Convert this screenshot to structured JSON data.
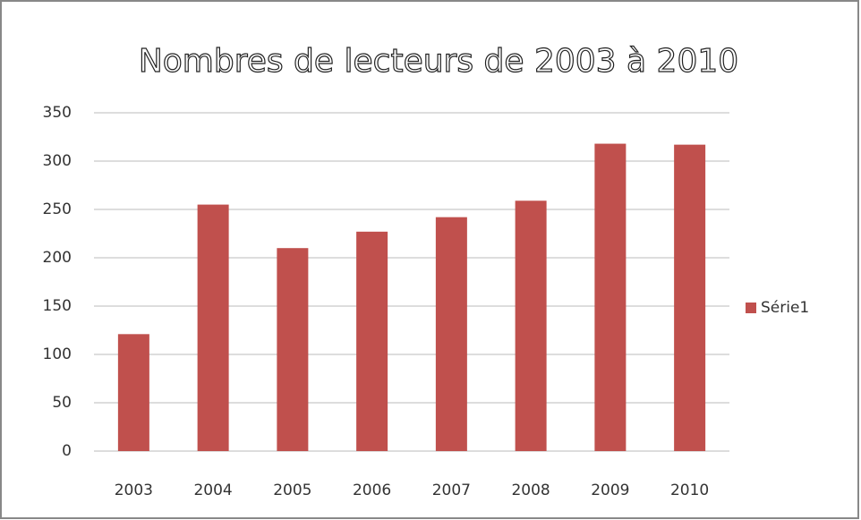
{
  "chart_data": {
    "type": "bar",
    "title": "Nombres de lecteurs de 2003 à 2010",
    "categories": [
      "2003",
      "2004",
      "2005",
      "2006",
      "2007",
      "2008",
      "2009",
      "2010"
    ],
    "series": [
      {
        "name": "Série1",
        "color": "#c0504d",
        "values": [
          121,
          255,
          210,
          227,
          242,
          259,
          318,
          317
        ]
      }
    ],
    "ylim": [
      0,
      350
    ],
    "yticks": [
      0,
      50,
      100,
      150,
      200,
      250,
      300,
      350
    ],
    "grid": true,
    "legend": "right"
  }
}
